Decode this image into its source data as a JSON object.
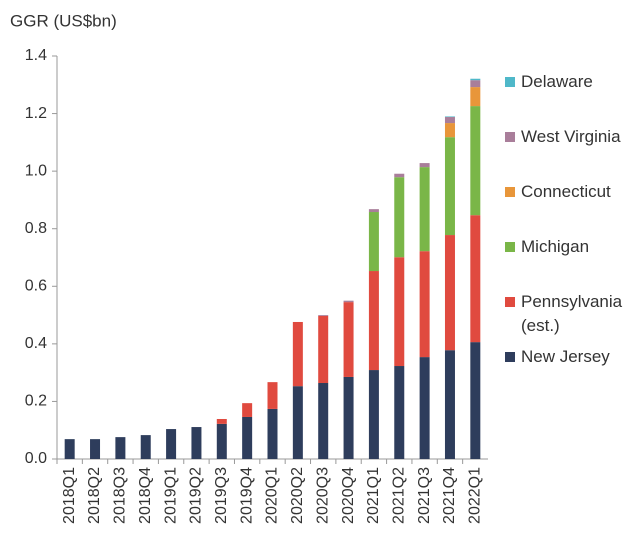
{
  "chart_data": {
    "type": "stacked_bar",
    "y_axis_label": "GGR (US$bn)",
    "categories": [
      "2018Q1",
      "2018Q2",
      "2018Q3",
      "2018Q4",
      "2019Q1",
      "2019Q2",
      "2019Q3",
      "2019Q4",
      "2020Q1",
      "2020Q2",
      "2020Q3",
      "2020Q4",
      "2021Q1",
      "2021Q2",
      "2021Q3",
      "2021Q4",
      "2022Q1"
    ],
    "series": [
      {
        "name": "New Jersey",
        "color": "#2e3d5c",
        "values": [
          0.069,
          0.069,
          0.076,
          0.083,
          0.104,
          0.111,
          0.122,
          0.146,
          0.174,
          0.253,
          0.264,
          0.285,
          0.309,
          0.323,
          0.354,
          0.378,
          0.406
        ]
      },
      {
        "name": "Pennsylvania (est.)",
        "color": "#e04a3f",
        "values": [
          0,
          0,
          0,
          0,
          0,
          0,
          0.017,
          0.048,
          0.093,
          0.223,
          0.233,
          0.26,
          0.344,
          0.378,
          0.368,
          0.4,
          0.441
        ]
      },
      {
        "name": "Michigan",
        "color": "#7ab648",
        "values": [
          0,
          0,
          0,
          0,
          0,
          0,
          0,
          0,
          0,
          0,
          0,
          0,
          0.205,
          0.278,
          0.292,
          0.34,
          0.379
        ]
      },
      {
        "name": "Connecticut",
        "color": "#e8963a",
        "values": [
          0,
          0,
          0,
          0,
          0,
          0,
          0,
          0,
          0,
          0,
          0,
          0,
          0,
          0,
          0,
          0.049,
          0.066
        ]
      },
      {
        "name": "West Virginia",
        "color": "#a97e9a",
        "values": [
          0,
          0,
          0,
          0,
          0,
          0,
          0,
          0,
          0,
          0,
          0.003,
          0.005,
          0.01,
          0.012,
          0.014,
          0.021,
          0.024
        ]
      },
      {
        "name": "Delaware",
        "color": "#4fb8c9",
        "values": [
          0,
          0,
          0,
          0,
          0,
          0,
          0,
          0,
          0,
          0,
          0,
          0,
          0,
          0,
          0,
          0.002,
          0.005
        ]
      }
    ],
    "ylim": [
      0,
      1.4
    ],
    "yticks": [
      {
        "value": 0,
        "label": "0.0"
      },
      0.2,
      0.4,
      0.6,
      0.8,
      {
        "value": 1,
        "label": "1.0"
      },
      1.2,
      1.4
    ]
  }
}
